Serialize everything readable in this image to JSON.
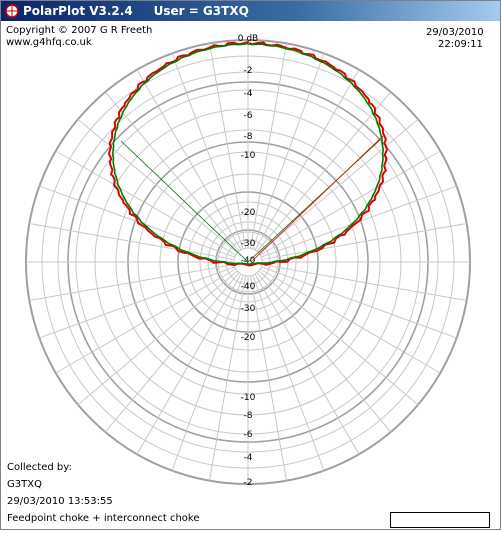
{
  "window": {
    "title_app": "PolarPlot V3.2.4",
    "title_user": "User = G3TXQ"
  },
  "header": {
    "copyright": "Copyright © 2007 G R Freeth",
    "website": "www.g4hfq.co.uk",
    "date": "29/03/2010",
    "time": "22:09:11"
  },
  "footer": {
    "collected_by_label": "Collected by:",
    "collector": "G3TXQ",
    "collected_at": "29/03/2010 13:53:55",
    "description": "Feedpoint choke + interconnect choke"
  },
  "plot": {
    "top_label": "0 dB",
    "upper_scale_labels": [
      "-2",
      "-4",
      "-6",
      "-8",
      "-10",
      "-20",
      "-30",
      "-40"
    ],
    "lower_scale_labels": [
      "-40",
      "-30",
      "-20",
      "-10",
      "-8",
      "-6",
      "-4",
      "-2"
    ],
    "colors": {
      "trace_red": "#e00000",
      "trace_green": "#007a00",
      "grid_heavy": "#a0a0a0",
      "grid_light": "#c8c8c8"
    }
  }
}
